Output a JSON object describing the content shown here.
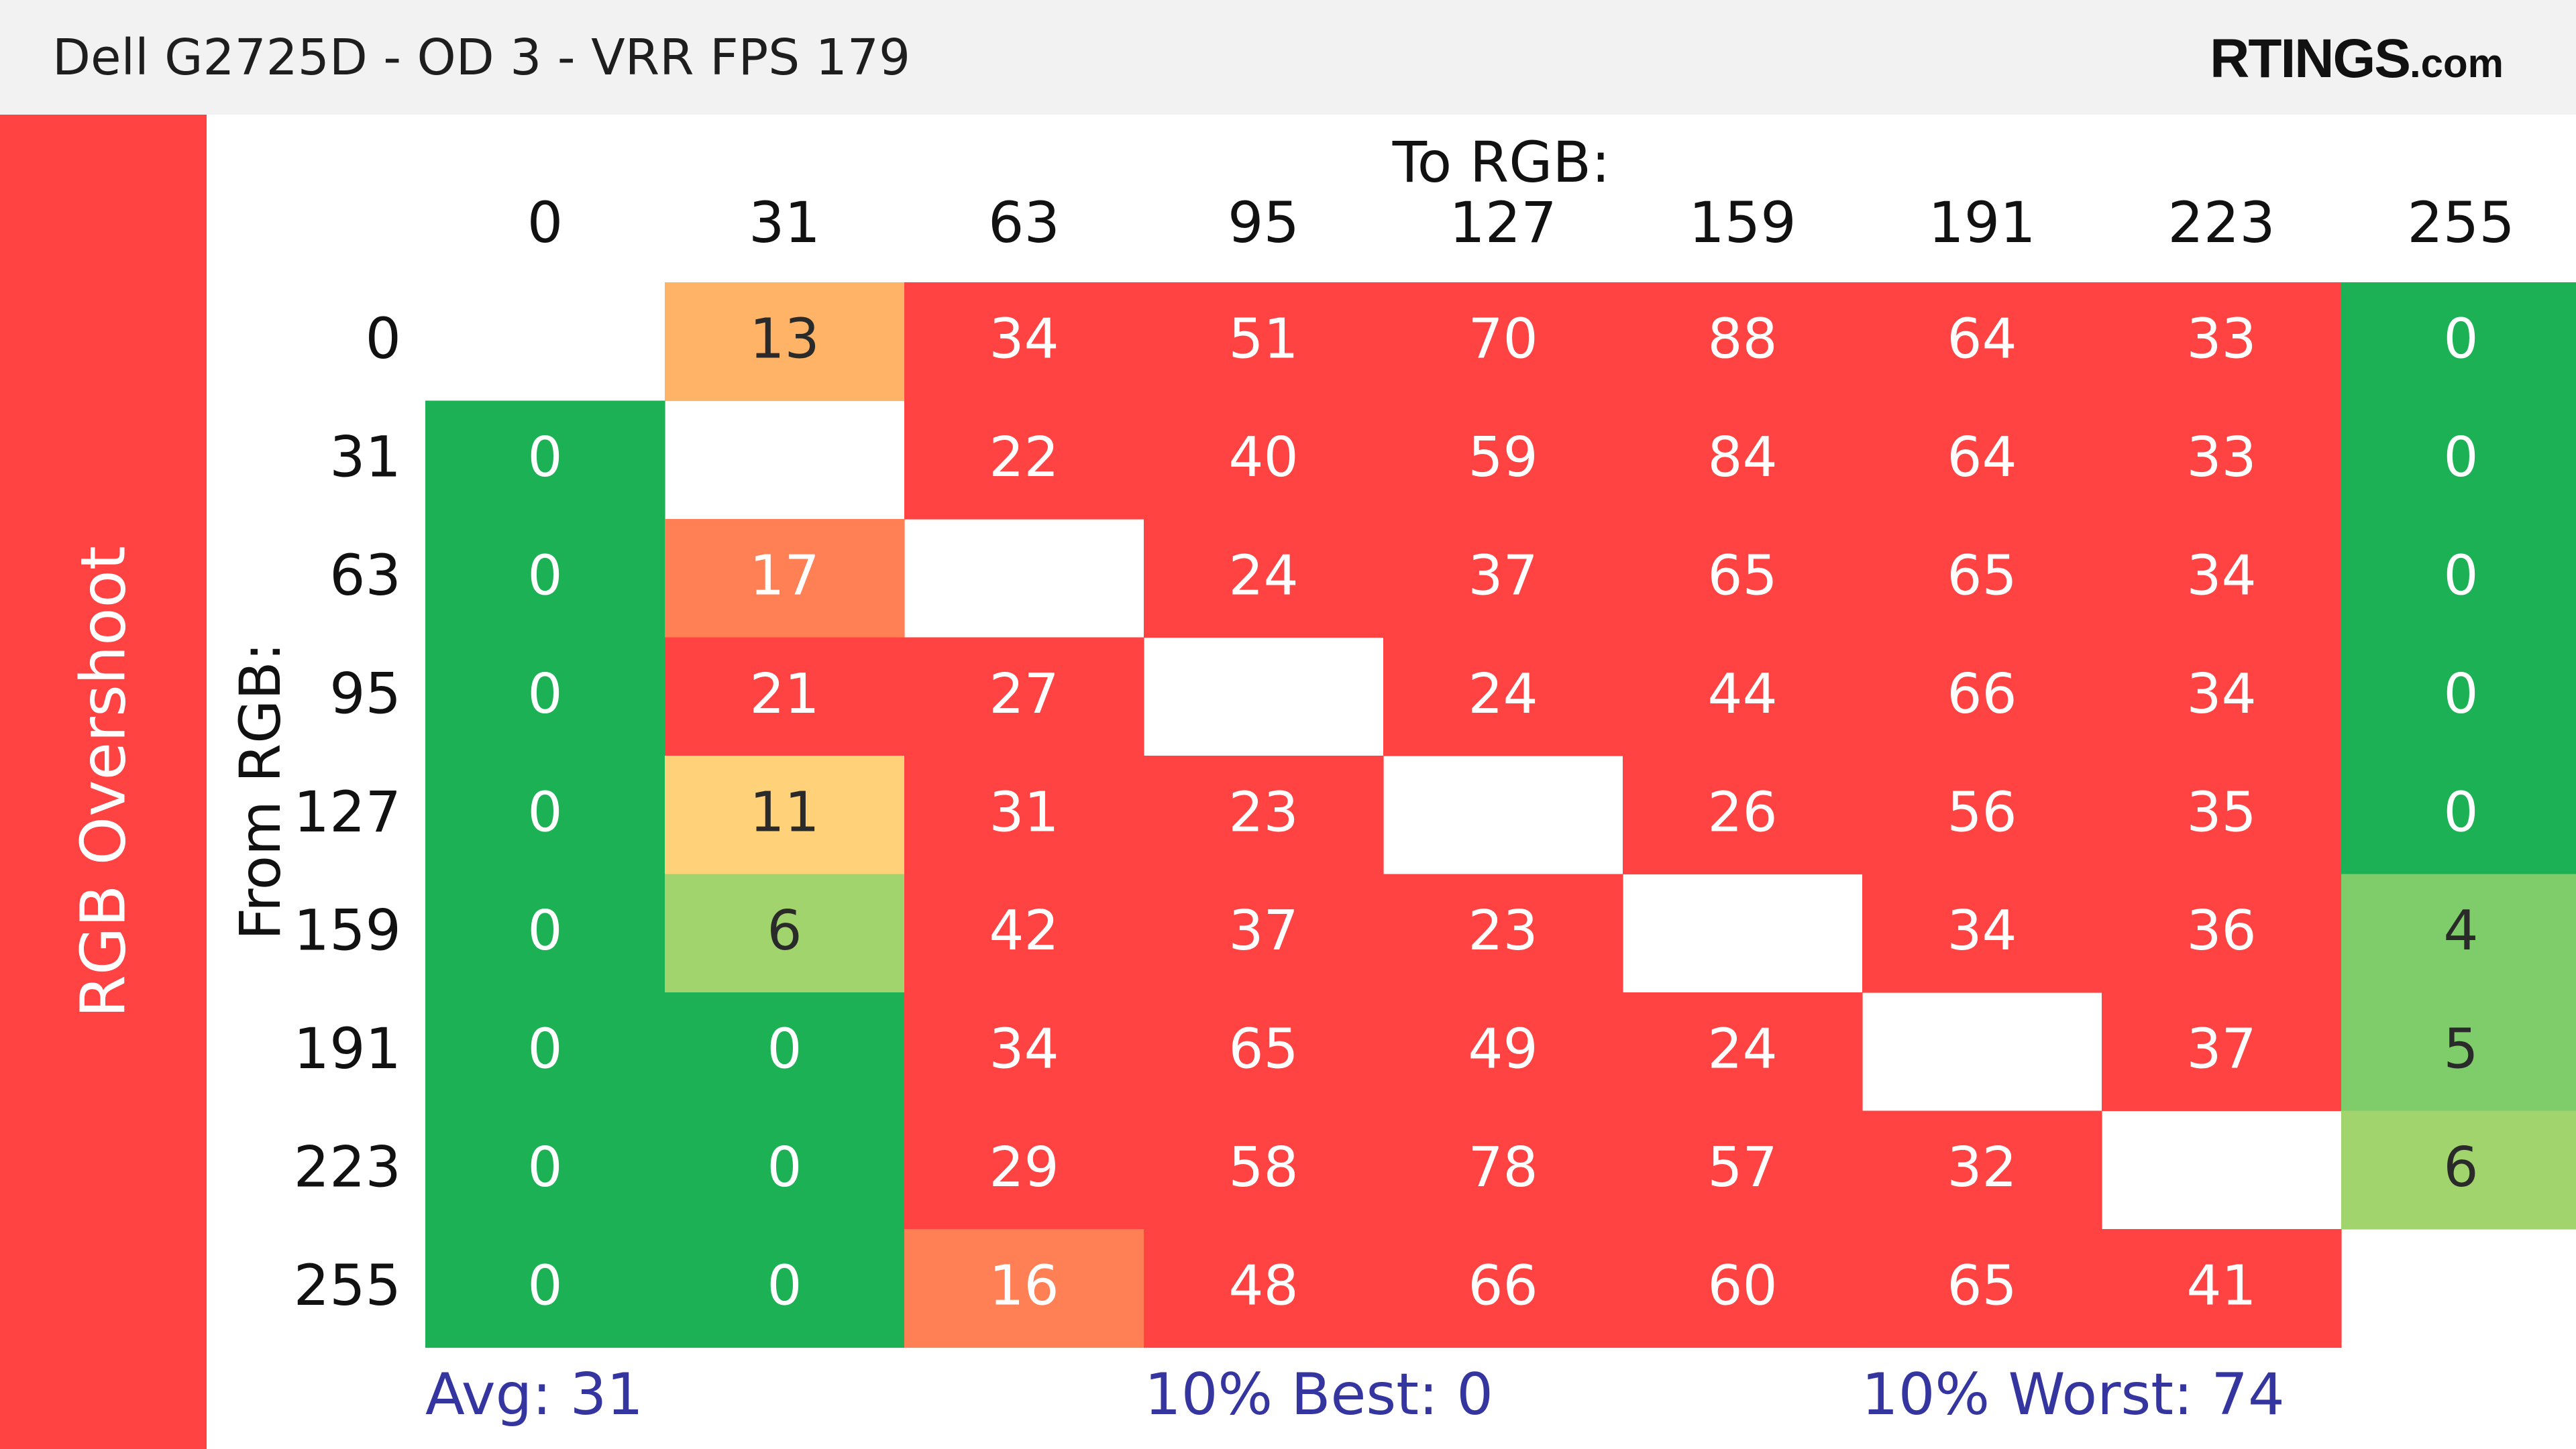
{
  "header": {
    "title": "Dell G2725D - OD 3 - VRR FPS 179",
    "brand_main": "RTINGS",
    "brand_suffix": ".com"
  },
  "side_label": "RGB Overshoot",
  "chart_data": {
    "type": "heatmap",
    "x_axis_label": "To RGB:",
    "y_axis_label": "From RGB:",
    "x_categories": [
      "0",
      "31",
      "63",
      "95",
      "127",
      "159",
      "191",
      "223",
      "255"
    ],
    "y_categories": [
      "0",
      "31",
      "63",
      "95",
      "127",
      "159",
      "191",
      "223",
      "255"
    ],
    "values": [
      [
        null,
        13,
        34,
        51,
        70,
        88,
        64,
        33,
        0
      ],
      [
        0,
        null,
        22,
        40,
        59,
        84,
        64,
        33,
        0
      ],
      [
        0,
        17,
        null,
        24,
        37,
        65,
        65,
        34,
        0
      ],
      [
        0,
        21,
        27,
        null,
        24,
        44,
        66,
        34,
        0
      ],
      [
        0,
        11,
        31,
        23,
        null,
        26,
        56,
        35,
        0
      ],
      [
        0,
        6,
        42,
        37,
        23,
        null,
        34,
        36,
        4
      ],
      [
        0,
        0,
        34,
        65,
        49,
        24,
        null,
        37,
        5
      ],
      [
        0,
        0,
        29,
        58,
        78,
        57,
        32,
        null,
        6
      ],
      [
        0,
        0,
        16,
        48,
        66,
        60,
        65,
        41,
        null
      ]
    ],
    "summary": {
      "avg": "Avg: 31",
      "best": "10% Best: 0",
      "worst": "10% Worst: 74"
    },
    "colors": {
      "good": "#1bb154",
      "good_light": "#7fcc6a",
      "ok": "#a2d46e",
      "warn_light": "#ffd27a",
      "warn": "#ffb366",
      "bad_light": "#ff8055",
      "bad": "#ff4242"
    }
  }
}
